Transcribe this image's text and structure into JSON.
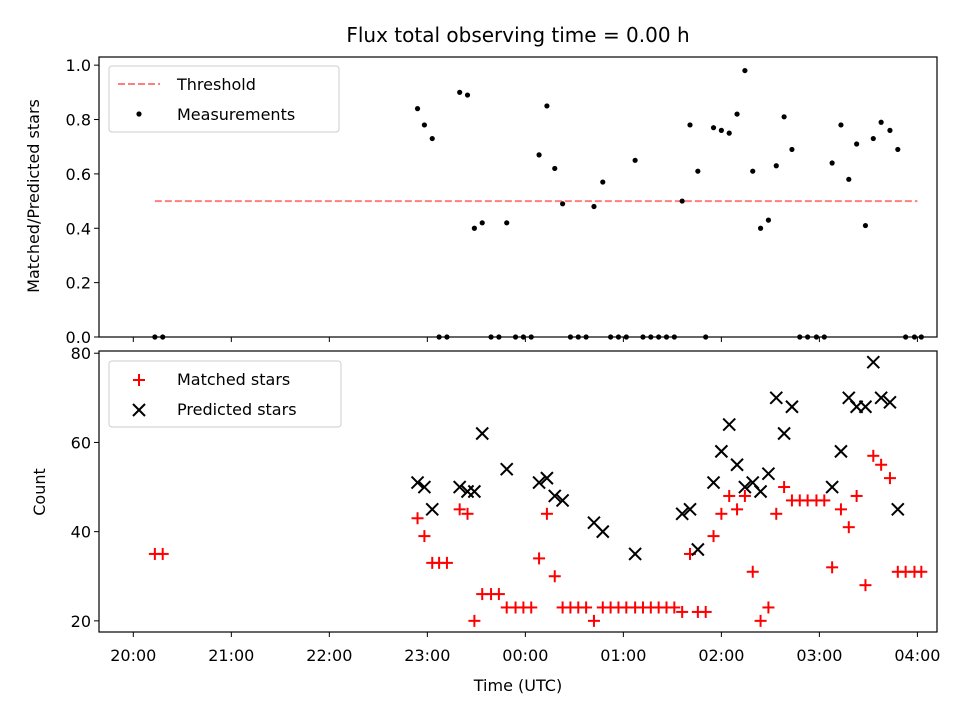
{
  "chart_data": [
    {
      "type": "scatter",
      "title": "Flux total observing time = 0.00 h",
      "xlabel": "",
      "ylabel": "Matched/Predicted stars",
      "xlim": [
        -0.35,
        8.2
      ],
      "ylim": [
        0,
        1.03
      ],
      "y_ticks": [
        0.0,
        0.2,
        0.4,
        0.6,
        0.8,
        1.0
      ],
      "y_tick_labels": [
        "0.0",
        "0.2",
        "0.4",
        "0.6",
        "0.8",
        "1.0"
      ],
      "x_ticks": [
        0,
        1,
        2,
        3,
        4,
        5,
        6,
        7,
        8
      ],
      "grid": false,
      "legend": "upper-left",
      "threshold": {
        "name": "Threshold",
        "value": 0.5,
        "x_range": [
          0.22,
          8.0
        ],
        "color": "#ff7f7f"
      },
      "series": [
        {
          "name": "Measurements",
          "color": "#000000",
          "x": [
            0.22,
            0.3,
            2.9,
            2.97,
            3.05,
            3.12,
            3.2,
            3.33,
            3.41,
            3.48,
            3.56,
            3.65,
            3.73,
            3.81,
            3.9,
            3.98,
            4.06,
            4.14,
            4.22,
            4.3,
            4.38,
            4.46,
            4.54,
            4.62,
            4.7,
            4.79,
            4.87,
            4.95,
            5.03,
            5.12,
            5.2,
            5.28,
            5.36,
            5.44,
            5.52,
            5.6,
            5.68,
            5.76,
            5.84,
            5.92,
            6.0,
            6.08,
            6.16,
            6.24,
            6.32,
            6.4,
            6.48,
            6.56,
            6.64,
            6.72,
            6.8,
            6.88,
            6.97,
            7.05,
            7.13,
            7.22,
            7.3,
            7.38,
            7.47,
            7.55,
            7.63,
            7.72,
            7.8,
            7.88,
            7.97,
            8.04
          ],
          "y": [
            0.0,
            0.0,
            0.84,
            0.78,
            0.73,
            0.0,
            0.0,
            0.9,
            0.89,
            0.4,
            0.42,
            0.0,
            0.0,
            0.42,
            0.0,
            0.0,
            0.0,
            0.67,
            0.85,
            0.62,
            0.49,
            0.0,
            0.0,
            0.0,
            0.48,
            0.57,
            0.0,
            0.0,
            0.0,
            0.65,
            0.0,
            0.0,
            0.0,
            0.0,
            0.0,
            0.5,
            0.78,
            0.61,
            0.0,
            0.77,
            0.76,
            0.75,
            0.82,
            0.98,
            0.61,
            0.4,
            0.43,
            0.63,
            0.81,
            0.69,
            0.0,
            0.0,
            0.0,
            0.0,
            0.64,
            0.78,
            0.58,
            0.71,
            0.41,
            0.73,
            0.79,
            0.76,
            0.69,
            0.0,
            0.0,
            0.0
          ]
        }
      ]
    },
    {
      "type": "scatter",
      "title": "",
      "xlabel": "Time (UTC)",
      "ylabel": "Count",
      "xlim": [
        -0.35,
        8.2
      ],
      "ylim": [
        17.5,
        80.5
      ],
      "y_ticks": [
        20,
        40,
        60,
        80
      ],
      "y_tick_labels": [
        "20",
        "40",
        "60",
        "80"
      ],
      "x_ticks": [
        0,
        1,
        2,
        3,
        4,
        5,
        6,
        7,
        8
      ],
      "x_tick_labels": [
        "20:00",
        "21:00",
        "22:00",
        "23:00",
        "00:00",
        "01:00",
        "02:00",
        "03:00",
        "04:00"
      ],
      "grid": false,
      "legend": "upper-left",
      "series": [
        {
          "name": "Matched stars",
          "marker": "plus",
          "color": "#ff0000",
          "x": [
            0.22,
            0.3,
            2.9,
            2.97,
            3.05,
            3.12,
            3.2,
            3.33,
            3.41,
            3.48,
            3.56,
            3.65,
            3.73,
            3.81,
            3.9,
            3.98,
            4.06,
            4.14,
            4.22,
            4.3,
            4.38,
            4.46,
            4.54,
            4.62,
            4.7,
            4.79,
            4.87,
            4.95,
            5.03,
            5.12,
            5.2,
            5.28,
            5.36,
            5.44,
            5.52,
            5.6,
            5.68,
            5.76,
            5.84,
            5.92,
            6.0,
            6.08,
            6.16,
            6.24,
            6.32,
            6.4,
            6.48,
            6.56,
            6.64,
            6.72,
            6.8,
            6.88,
            6.97,
            7.05,
            7.13,
            7.22,
            7.3,
            7.38,
            7.47,
            7.55,
            7.63,
            7.72,
            7.8,
            7.88,
            7.97,
            8.04
          ],
          "y": [
            35,
            35,
            43,
            39,
            33,
            33,
            33,
            45,
            44,
            20,
            26,
            26,
            26,
            23,
            23,
            23,
            23,
            34,
            44,
            30,
            23,
            23,
            23,
            23,
            20,
            23,
            23,
            23,
            23,
            23,
            23,
            23,
            23,
            23,
            23,
            22,
            35,
            22,
            22,
            39,
            44,
            48,
            45,
            48,
            31,
            20,
            23,
            44,
            50,
            47,
            47,
            47,
            47,
            47,
            32,
            45,
            41,
            48,
            28,
            57,
            55,
            52,
            31,
            31,
            31,
            31
          ]
        },
        {
          "name": "Predicted stars",
          "marker": "x",
          "color": "#000000",
          "x": [
            2.9,
            2.97,
            3.05,
            3.33,
            3.41,
            3.48,
            3.56,
            3.81,
            4.14,
            4.22,
            4.3,
            4.38,
            4.7,
            4.79,
            5.12,
            5.6,
            5.68,
            5.76,
            5.92,
            6.0,
            6.08,
            6.16,
            6.24,
            6.32,
            6.4,
            6.48,
            6.56,
            6.64,
            6.72,
            7.13,
            7.22,
            7.3,
            7.38,
            7.47,
            7.55,
            7.63,
            7.72,
            7.8
          ],
          "y": [
            51,
            50,
            45,
            50,
            49,
            49,
            62,
            54,
            51,
            52,
            48,
            47,
            42,
            40,
            35,
            44,
            45,
            36,
            51,
            58,
            64,
            55,
            50,
            51,
            49,
            53,
            70,
            62,
            68,
            50,
            58,
            70,
            68,
            68,
            78,
            70,
            69,
            45
          ]
        }
      ]
    }
  ]
}
